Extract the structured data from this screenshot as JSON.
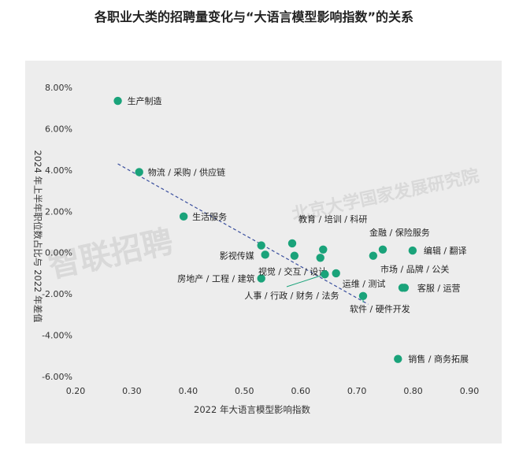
{
  "chart_data": {
    "type": "scatter",
    "title": "各职业大类的招聘量变化与“大语言模型影响指数”的关系",
    "xlabel": "2022 年大语言模型影响指数",
    "ylabel": "2024 年上半年职位数占比与 2022 年差值",
    "xlim": [
      0.2,
      0.9
    ],
    "ylim": [
      -6.5,
      8.7
    ],
    "xticks": [
      "0.20",
      "0.30",
      "0.40",
      "0.50",
      "0.60",
      "0.70",
      "0.80",
      "0.90"
    ],
    "yticks": [
      "8.00%",
      "6.00%",
      "4.00%",
      "2.00%",
      "0.00%",
      "-2.00%",
      "-4.00%",
      "-6.00%"
    ],
    "grid": false,
    "colors": {
      "point": "#1aa37a",
      "trend": "#3a4f9e",
      "background": "#ededed"
    },
    "trendline": {
      "x": [
        0.275,
        0.72
      ],
      "y": [
        4.3,
        -2.5
      ]
    },
    "points": [
      {
        "label": "生产制造",
        "x": 0.275,
        "y": 7.35
      },
      {
        "label": "物流 / 采购 / 供应链",
        "x": 0.313,
        "y": 3.9
      },
      {
        "label": "生活服务",
        "x": 0.392,
        "y": 1.75
      },
      {
        "label": "影视传媒",
        "x": 0.53,
        "y": 0.35
      },
      {
        "label": "",
        "x": 0.537,
        "y": -0.1
      },
      {
        "label": "房地产 / 工程 / 建筑",
        "x": 0.53,
        "y": -1.25
      },
      {
        "label": "教育 / 培训 / 科研",
        "x": 0.585,
        "y": 0.45
      },
      {
        "label": "视觉 / 交互 / 设计",
        "x": 0.589,
        "y": -0.15
      },
      {
        "label": "",
        "x": 0.635,
        "y": -0.25
      },
      {
        "label": "",
        "x": 0.64,
        "y": 0.15
      },
      {
        "label": "人事 / 行政 / 财务 / 法务",
        "x": 0.643,
        "y": -1.05
      },
      {
        "label": "运维 / 测试",
        "x": 0.663,
        "y": -1.0
      },
      {
        "label": "软件 / 硬件开发",
        "x": 0.711,
        "y": -2.1
      },
      {
        "label": "",
        "x": 0.729,
        "y": -0.15
      },
      {
        "label": "金融 / 保险服务",
        "x": 0.746,
        "y": 0.15
      },
      {
        "label": "编辑 / 翻译",
        "x": 0.799,
        "y": 0.1
      },
      {
        "label": "市场 / 品牌 / 公关",
        "x": 0.781,
        "y": -1.7
      },
      {
        "label": "客服 / 运营",
        "x": 0.785,
        "y": -1.7
      },
      {
        "label": "销售 / 商务拓展",
        "x": 0.773,
        "y": -5.15
      }
    ]
  },
  "watermarks": [
    "智联招聘",
    "北京大学国家发展研究院"
  ]
}
